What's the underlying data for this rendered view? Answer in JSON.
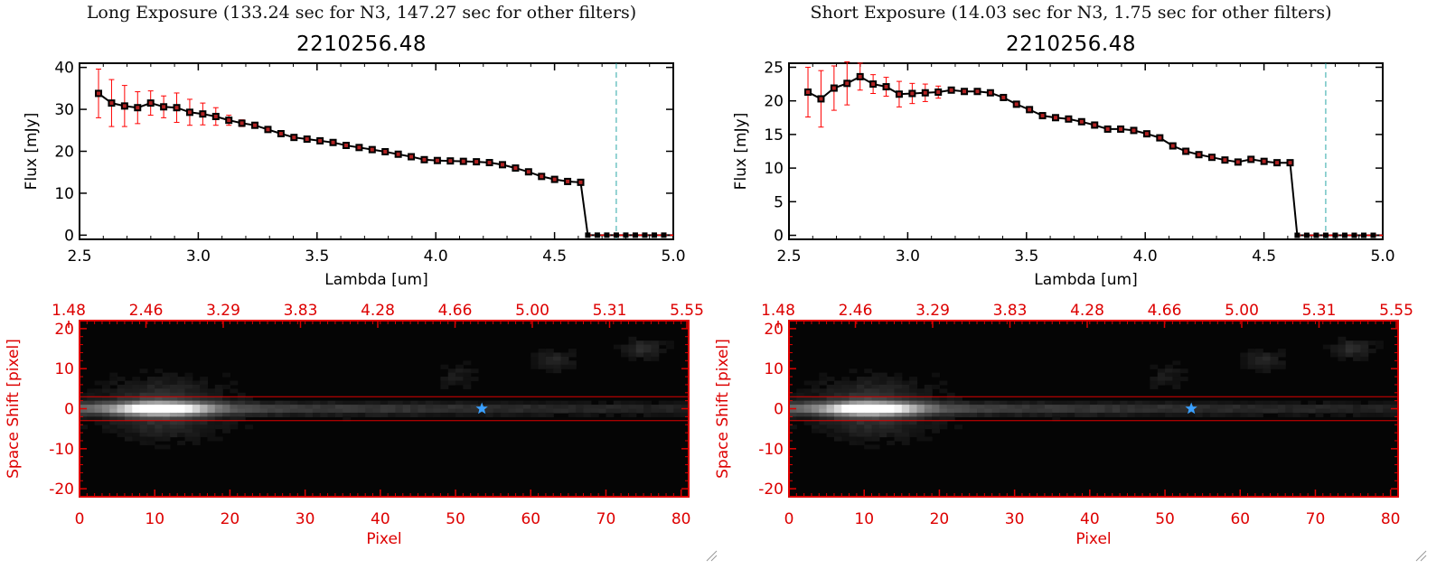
{
  "panels": [
    {
      "title": "Long Exposure (133.24 sec for N3, 147.27 sec for other filters)",
      "object_id": "2210256.48"
    },
    {
      "title": "Short Exposure (14.03 sec for N3, 1.75 sec for other filters)",
      "object_id": "2210256.48"
    }
  ],
  "colors": {
    "line": "#000000",
    "marker": "#b22222",
    "errorbar": "#ff0000",
    "cutoff_line": "#2aa7a7",
    "image_axes": "#dd0000",
    "star_marker": "#3aa0ff"
  },
  "chart_data": [
    {
      "type": "line",
      "title": "2210256.48",
      "xlabel": "Lambda [um]",
      "ylabel": "Flux [mJy]",
      "xlim": [
        2.5,
        5.0
      ],
      "ylim": [
        -1,
        41
      ],
      "xticks": [
        "2.5",
        "3.0",
        "3.5",
        "4.0",
        "4.5",
        "5.0"
      ],
      "yticks": [
        "0",
        "10",
        "20",
        "30",
        "40"
      ],
      "cutoff_x": 4.76,
      "x": [
        2.58,
        2.67,
        2.76,
        2.85,
        2.93,
        3.0,
        3.07,
        3.14,
        3.21,
        3.28,
        3.35,
        3.42,
        3.49,
        3.56,
        3.63,
        3.7,
        3.77,
        3.84,
        3.91,
        3.98,
        4.05,
        4.12,
        4.19,
        4.26,
        4.33,
        4.4,
        4.47,
        4.54,
        4.61,
        4.64,
        4.68,
        4.72,
        4.76,
        4.8,
        4.84,
        4.88,
        4.92,
        4.96
      ],
      "y": [
        33.8,
        31.5,
        30.8,
        30.4,
        31.5,
        30.6,
        30.4,
        29.3,
        28.9,
        28.3,
        27.4,
        26.7,
        26.2,
        25.2,
        24.2,
        23.3,
        22.9,
        22.5,
        22.1,
        21.4,
        20.9,
        20.4,
        19.9,
        19.3,
        18.7,
        18.0,
        17.8,
        17.7,
        17.6,
        17.5,
        17.3,
        16.8,
        16.0,
        15.1,
        14.0,
        13.3,
        12.8,
        12.6
      ],
      "yerr": [
        5.8,
        5.6,
        4.9,
        3.8,
        2.9,
        2.6,
        3.5,
        3.1,
        2.6,
        2.1,
        1.2,
        0.8,
        0.6,
        0.5,
        0.4,
        0.4,
        0.3,
        0.3,
        0.3,
        0.3,
        0.3,
        0.3,
        0.3,
        0.3,
        0.3,
        0.3,
        0.3,
        0.3,
        0.3,
        0.3,
        0.3,
        0.3,
        0.3,
        0.3,
        0.3,
        0.3,
        0.3,
        0.3
      ],
      "drop_x": 4.64,
      "zero_x": [
        4.64,
        4.68,
        4.72,
        4.76,
        4.8,
        4.84,
        4.88,
        4.92,
        4.96
      ]
    },
    {
      "type": "line",
      "title": "2210256.48",
      "xlabel": "Lambda [um]",
      "ylabel": "Flux [mJy]",
      "xlim": [
        2.5,
        5.0
      ],
      "ylim": [
        -0.6,
        25.6
      ],
      "xticks": [
        "2.5",
        "3.0",
        "3.5",
        "4.0",
        "4.5",
        "5.0"
      ],
      "yticks": [
        "0",
        "5",
        "10",
        "15",
        "20",
        "25"
      ],
      "cutoff_x": 4.76,
      "x": [
        2.58,
        2.67,
        2.76,
        2.85,
        2.93,
        3.0,
        3.07,
        3.14,
        3.21,
        3.28,
        3.35,
        3.42,
        3.49,
        3.56,
        3.63,
        3.7,
        3.77,
        3.84,
        3.91,
        3.98,
        4.05,
        4.12,
        4.19,
        4.26,
        4.33,
        4.4,
        4.47,
        4.54,
        4.61,
        4.64,
        4.68,
        4.72,
        4.76,
        4.8,
        4.84,
        4.88,
        4.92,
        4.96
      ],
      "y": [
        21.3,
        20.3,
        21.9,
        22.6,
        23.6,
        22.5,
        22.1,
        21.0,
        21.1,
        21.2,
        21.3,
        21.6,
        21.4,
        21.4,
        21.2,
        20.5,
        19.5,
        18.7,
        17.8,
        17.5,
        17.3,
        16.9,
        16.4,
        15.8,
        15.8,
        15.6,
        15.1,
        14.5,
        13.3,
        12.5,
        12.0,
        11.6,
        11.2,
        10.9,
        11.3,
        11.0,
        10.8,
        10.8
      ],
      "yerr": [
        3.7,
        4.2,
        3.3,
        3.2,
        2.0,
        1.4,
        1.4,
        1.9,
        1.5,
        1.3,
        0.9,
        0.5,
        0.4,
        0.3,
        0.3,
        0.3,
        0.3,
        0.3,
        0.3,
        0.3,
        0.3,
        0.3,
        0.3,
        0.3,
        0.3,
        0.3,
        0.3,
        0.3,
        0.3,
        0.3,
        0.3,
        0.3,
        0.3,
        0.3,
        0.3,
        0.3,
        0.3,
        0.3
      ],
      "drop_x": 4.64,
      "zero_x": [
        4.64,
        4.68,
        4.72,
        4.76,
        4.8,
        4.84,
        4.88,
        4.92,
        4.96
      ]
    },
    {
      "type": "heatmap",
      "xlabel": "Pixel",
      "ylabel": "Space Shift [pixel]",
      "xlim": [
        0,
        81
      ],
      "ylim": [
        -22,
        22
      ],
      "xticks": [
        "0",
        "10",
        "20",
        "30",
        "40",
        "50",
        "60",
        "70",
        "80"
      ],
      "yticks": [
        "-20",
        "-10",
        "0",
        "10",
        "20"
      ],
      "top_ticks": [
        "1.48",
        "2.46",
        "3.29",
        "3.83",
        "4.28",
        "4.66",
        "5.00",
        "5.31",
        "5.55"
      ],
      "aperture": [
        -3,
        3
      ],
      "star_pixel": [
        53.5,
        0
      ],
      "peak_pixel": 11
    },
    {
      "type": "heatmap",
      "xlabel": "Pixel",
      "ylabel": "Space Shift [pixel]",
      "xlim": [
        0,
        81
      ],
      "ylim": [
        -22,
        22
      ],
      "xticks": [
        "0",
        "10",
        "20",
        "30",
        "40",
        "50",
        "60",
        "70",
        "80"
      ],
      "yticks": [
        "-20",
        "-10",
        "0",
        "10",
        "20"
      ],
      "top_ticks": [
        "1.48",
        "2.46",
        "3.29",
        "3.83",
        "4.28",
        "4.66",
        "5.00",
        "5.31",
        "5.55"
      ],
      "aperture": [
        -3,
        3
      ],
      "star_pixel": [
        53.5,
        0
      ],
      "peak_pixel": 11
    }
  ]
}
